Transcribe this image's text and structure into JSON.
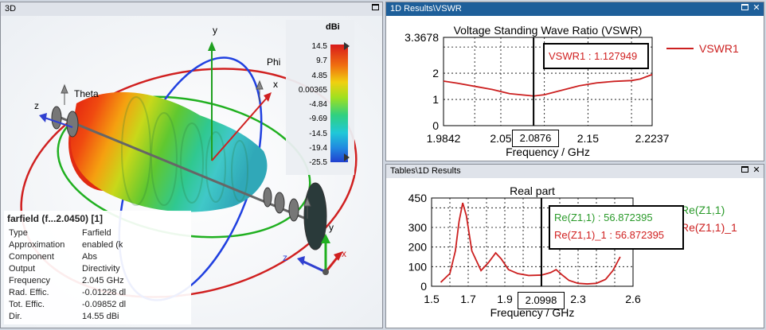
{
  "view3d": {
    "title": "3D",
    "axes": {
      "y": "y",
      "x": "x",
      "z": "z",
      "phi": "Phi",
      "theta": "Theta",
      "z2": "z",
      "x2": "x",
      "y2": "y"
    },
    "colorbar": {
      "unit": "dBi",
      "ticks": [
        "14.5",
        "9.7",
        "4.85",
        "0.00365",
        "-4.84",
        "-9.69",
        "-14.5",
        "-19.4",
        "-25.5"
      ]
    },
    "info": {
      "title": "farfield (f...2.0450) [1]",
      "rows": [
        {
          "key": "Type",
          "value": "Farfield"
        },
        {
          "key": "Approximation",
          "value": "enabled (k"
        },
        {
          "key": "Component",
          "value": "Abs"
        },
        {
          "key": "Output",
          "value": "Directivity"
        },
        {
          "key": "Frequency",
          "value": "2.045 GHz"
        },
        {
          "key": "Rad. Effic.",
          "value": "-0.01228 dl"
        },
        {
          "key": "Tot. Effic.",
          "value": "-0.09852 dl"
        },
        {
          "key": "Dir.",
          "value": "14.55 dBi"
        }
      ]
    }
  },
  "vswr_panel": {
    "title": "1D Results\\VSWR",
    "marker_label": "VSWR1 : 1.127949",
    "cursor_x_label": "2.0876",
    "legend": [
      {
        "name": "VSWR1",
        "color": "#cc2020"
      }
    ]
  },
  "tables_panel": {
    "title": "Tables\\1D Results",
    "marker_label_1": "Re(Z1,1) : 56.872395",
    "marker_label_2": "Re(Z1,1)_1 : 56.872395",
    "cursor_x_label": "2.0998",
    "legend": [
      {
        "name": "Re(Z1,1)",
        "color": "#2a9a2a"
      },
      {
        "name": "Re(Z1,1)_1",
        "color": "#cc2020"
      }
    ]
  },
  "chart_data": [
    {
      "type": "line",
      "title": "Voltage Standing Wave Ratio (VSWR)",
      "xlabel": "Frequency / GHz",
      "ylabel": "",
      "xlim": [
        1.9842,
        2.2237
      ],
      "ylim": [
        0,
        3.3678
      ],
      "x_ticks": [
        "1.9842",
        "2.05",
        "2.15",
        "2.2237"
      ],
      "y_ticks": [
        "3.3678",
        "2",
        "1",
        "0"
      ],
      "cursor_x": 2.0876,
      "series": [
        {
          "name": "VSWR1",
          "color": "#cc2020",
          "x": [
            1.9842,
            2.0,
            2.02,
            2.04,
            2.06,
            2.0876,
            2.1,
            2.12,
            2.14,
            2.16,
            2.18,
            2.2,
            2.21,
            2.2237
          ],
          "y": [
            1.7,
            1.62,
            1.5,
            1.38,
            1.22,
            1.13,
            1.18,
            1.35,
            1.52,
            1.63,
            1.69,
            1.72,
            1.78,
            1.95
          ]
        }
      ]
    },
    {
      "type": "line",
      "title": "Real part",
      "xlabel": "Frequency / GHz",
      "ylabel": "",
      "xlim": [
        1.5,
        2.6
      ],
      "ylim": [
        0,
        450
      ],
      "x_ticks": [
        "1.5",
        "1.7",
        "1.9",
        "2.3",
        "2.6"
      ],
      "y_ticks": [
        "450",
        "300",
        "200",
        "100",
        "0"
      ],
      "cursor_x": 2.0998,
      "series": [
        {
          "name": "Re(Z1,1)_1",
          "color": "#cc2020",
          "x": [
            1.55,
            1.6,
            1.63,
            1.65,
            1.67,
            1.69,
            1.72,
            1.77,
            1.81,
            1.85,
            1.88,
            1.92,
            1.97,
            2.03,
            2.1,
            2.15,
            2.18,
            2.21,
            2.25,
            2.3,
            2.35,
            2.4,
            2.45,
            2.49,
            2.53
          ],
          "y": [
            20,
            65,
            180,
            330,
            425,
            360,
            180,
            80,
            120,
            170,
            140,
            85,
            65,
            55,
            57,
            70,
            85,
            60,
            30,
            15,
            12,
            15,
            35,
            80,
            150
          ]
        }
      ]
    }
  ]
}
